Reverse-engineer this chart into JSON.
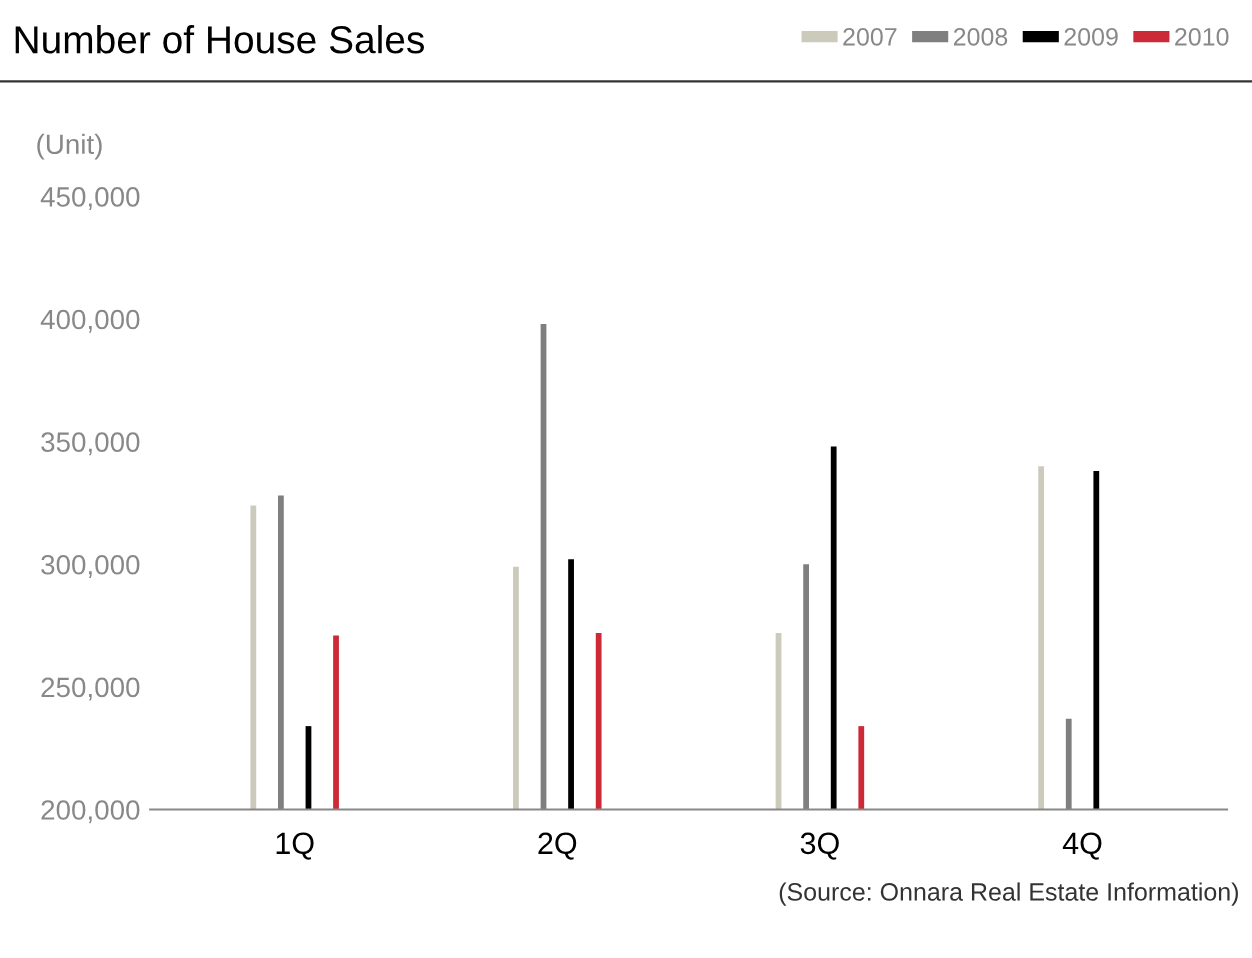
{
  "chart_data": {
    "type": "bar",
    "title": "Number of House Sales",
    "ylabel": "(Unit)",
    "categories": [
      "1Q",
      "2Q",
      "3Q",
      "4Q"
    ],
    "series": [
      {
        "name": "2007",
        "color": "#cccabb",
        "values": [
          324000,
          299000,
          272000,
          340000
        ]
      },
      {
        "name": "2008",
        "color": "#7f7f7f",
        "values": [
          328000,
          398000,
          300000,
          237000
        ]
      },
      {
        "name": "2009",
        "color": "#000000",
        "values": [
          234000,
          302000,
          348000,
          338000
        ]
      },
      {
        "name": "2010",
        "color": "#cc2a36",
        "values": [
          271000,
          272000,
          234000,
          null
        ]
      }
    ],
    "ylim": [
      200000,
      450000
    ],
    "yticks": [
      {
        "value": 200000,
        "label": "200,000"
      },
      {
        "value": 250000,
        "label": "250,000"
      },
      {
        "value": 300000,
        "label": "300,000"
      },
      {
        "value": 350000,
        "label": "350,000"
      },
      {
        "value": 400000,
        "label": "400,000"
      },
      {
        "value": 450000,
        "label": "450,000"
      }
    ],
    "grid": false,
    "legend": "top right",
    "annotations": [
      "(Source: Onnara Real Estate Information)"
    ]
  }
}
